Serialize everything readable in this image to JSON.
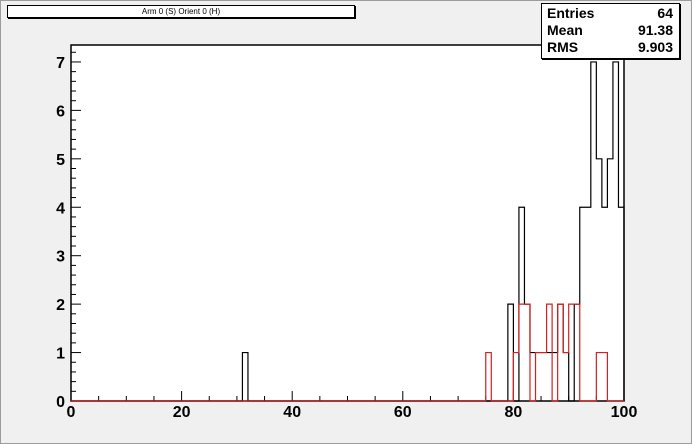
{
  "title": "Arm 0 (S) Orient 0 (H)",
  "stats": {
    "entries_label": "Entries",
    "entries_value": "64",
    "mean_label": "Mean",
    "mean_value": "91.38",
    "rms_label": "RMS",
    "rms_value": "9.903"
  },
  "chart_data": {
    "type": "bar",
    "title": "Arm 0 (S) Orient 0 (H)",
    "xlim": [
      0,
      100
    ],
    "ylim": [
      0,
      7.35
    ],
    "x_ticks": [
      0,
      20,
      40,
      60,
      80,
      100
    ],
    "y_ticks": [
      0,
      1,
      2,
      3,
      4,
      5,
      6,
      7
    ],
    "bin_width": 1,
    "series": [
      {
        "color": "#000000",
        "bins": [
          {
            "x": 31,
            "y": 1
          },
          {
            "x": 79,
            "y": 2
          },
          {
            "x": 81,
            "y": 4
          },
          {
            "x": 82,
            "y": 2
          },
          {
            "x": 83,
            "y": 1
          },
          {
            "x": 84,
            "y": 1
          },
          {
            "x": 85,
            "y": 1
          },
          {
            "x": 86,
            "y": 1
          },
          {
            "x": 87,
            "y": 1
          },
          {
            "x": 88,
            "y": 2
          },
          {
            "x": 89,
            "y": 1
          },
          {
            "x": 91,
            "y": 2
          },
          {
            "x": 92,
            "y": 4
          },
          {
            "x": 93,
            "y": 4
          },
          {
            "x": 94,
            "y": 7
          },
          {
            "x": 95,
            "y": 5
          },
          {
            "x": 96,
            "y": 4
          },
          {
            "x": 97,
            "y": 5
          },
          {
            "x": 98,
            "y": 7
          },
          {
            "x": 99,
            "y": 4
          }
        ]
      },
      {
        "color": "#d42020",
        "bins": [
          {
            "x": 75,
            "y": 1
          },
          {
            "x": 80,
            "y": 1
          },
          {
            "x": 81,
            "y": 2
          },
          {
            "x": 82,
            "y": 2
          },
          {
            "x": 84,
            "y": 1
          },
          {
            "x": 85,
            "y": 1
          },
          {
            "x": 86,
            "y": 2
          },
          {
            "x": 88,
            "y": 2
          },
          {
            "x": 89,
            "y": 1
          },
          {
            "x": 90,
            "y": 2
          },
          {
            "x": 91,
            "y": 2
          },
          {
            "x": 95,
            "y": 1
          },
          {
            "x": 96,
            "y": 1
          }
        ]
      }
    ]
  }
}
